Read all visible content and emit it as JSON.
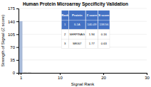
{
  "chart_data": {
    "type": "bar",
    "title": "Human Protein Microarray Specificity Validation",
    "xlabel": "Signal Rank",
    "ylabel": "Strength of Signal (Z score)",
    "x": [
      1,
      2,
      3
    ],
    "values": [
      140.49,
      1.94,
      1.77
    ],
    "colors": [
      "#A8BAD8",
      "#D9D9D9",
      "#D9D9D9"
    ],
    "xlim": [
      0.5,
      30
    ],
    "xticks": [
      1,
      10,
      20,
      30
    ],
    "ylim": [
      0,
      175
    ],
    "yticks": [
      0,
      35,
      70,
      105,
      140,
      175
    ],
    "grid": true,
    "table": [
      [
        "Rank",
        "Protein",
        "Z score",
        "S score"
      ],
      [
        "1",
        "IL1A",
        "140.49",
        "138.56"
      ],
      [
        "2",
        "SERPINAG",
        "1.94",
        "0.16"
      ],
      [
        "3",
        "MKI67",
        "1.77",
        "0.63"
      ]
    ]
  }
}
